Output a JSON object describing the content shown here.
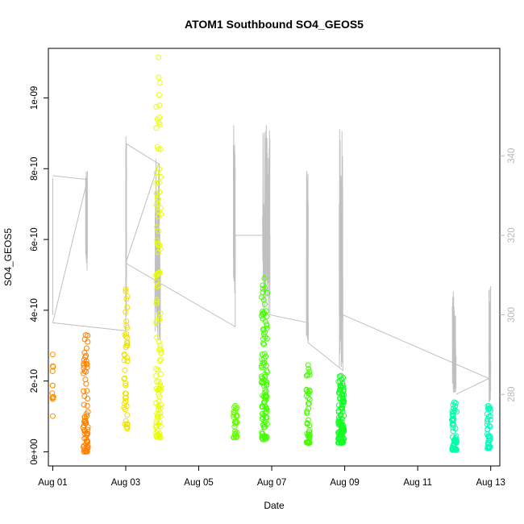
{
  "chart_data": {
    "type": "scatter",
    "title": "ATOM1 Southbound SO4_GEOS5",
    "xlabel": "Date",
    "ylabel": "SO4_GEOS5",
    "xlim": [
      -0.12,
      12.25
    ],
    "ylim": [
      -4e-11,
      1.14e-09
    ],
    "x_ticks": [
      0,
      2,
      4,
      6,
      8,
      10,
      12
    ],
    "x_tick_labels": [
      "Aug 01",
      "Aug 03",
      "Aug 05",
      "Aug 07",
      "Aug 09",
      "Aug 11",
      "Aug 13"
    ],
    "y_ticks": [
      0,
      2e-10,
      4e-10,
      6e-10,
      8e-10,
      1e-09
    ],
    "y_tick_labels": [
      "0e+00",
      "2e-10",
      "4e-10",
      "6e-10",
      "8e-10",
      "1e-09"
    ],
    "y2_label": "",
    "y2_lim": [
      262,
      367
    ],
    "y2_ticks": [
      280,
      300,
      320,
      340
    ],
    "y2_tick_labels": [
      "280",
      "300",
      "320",
      "340"
    ],
    "series_color_note": "",
    "colors": {
      "line": "#c0c0c0",
      "clusters": [
        "#ff9900",
        "#ff8800",
        "#e3f000",
        "#f6ff00",
        "#66ff00",
        "#33ff00",
        "#55ff00",
        "#11ff22",
        "#00ffaa",
        "#00ffb8"
      ]
    },
    "clusters": [
      {
        "x": 0.0,
        "xspread": 0.02,
        "ymin": 1e-10,
        "ymax": 2.75e-10,
        "n": 12,
        "color": "#ff9000"
      },
      {
        "x": 0.9,
        "xspread": 0.07,
        "ymin": 0.0,
        "ymax": 3.3e-10,
        "n": 70,
        "color": "#ff8000"
      },
      {
        "x": 2.0,
        "xspread": 0.05,
        "ymin": 6.5e-11,
        "ymax": 4.6e-10,
        "n": 45,
        "color": "#f0e000"
      },
      {
        "x": 2.9,
        "xspread": 0.07,
        "ymin": 4e-11,
        "ymax": 1.115e-09,
        "n": 110,
        "color": "#e8ff00"
      },
      {
        "x": 5.0,
        "xspread": 0.05,
        "ymin": 4e-11,
        "ymax": 1.3e-10,
        "n": 30,
        "color": "#66ff00"
      },
      {
        "x": 5.8,
        "xspread": 0.08,
        "ymin": 3.5e-11,
        "ymax": 4.9e-10,
        "n": 110,
        "color": "#44ff00"
      },
      {
        "x": 7.0,
        "xspread": 0.05,
        "ymin": 2.5e-11,
        "ymax": 2.45e-10,
        "n": 45,
        "color": "#44ff00"
      },
      {
        "x": 7.9,
        "xspread": 0.08,
        "ymin": 2.5e-11,
        "ymax": 2.15e-10,
        "n": 110,
        "color": "#11ff22"
      },
      {
        "x": 11.0,
        "xspread": 0.07,
        "ymin": 5e-12,
        "ymax": 1.4e-10,
        "n": 60,
        "color": "#00ffaa"
      },
      {
        "x": 11.95,
        "xspread": 0.05,
        "ymin": 1e-11,
        "ymax": 1.3e-10,
        "n": 40,
        "color": "#00ffbb"
      }
    ],
    "line_segments": [
      {
        "x0": 0.0,
        "x1": 0.0,
        "y2min": 298,
        "y2max": 335
      },
      {
        "x0": 0.9,
        "x1": 0.95,
        "y2min": 311,
        "y2max": 337
      },
      {
        "x0": 2.0,
        "x1": 2.02,
        "y2min": 296,
        "y2max": 345
      },
      {
        "x0": 2.8,
        "x1": 2.95,
        "y2min": 292,
        "y2max": 342
      },
      {
        "x0": 4.95,
        "x1": 5.0,
        "y2min": 305,
        "y2max": 350
      },
      {
        "x0": 5.75,
        "x1": 5.95,
        "y2min": 300,
        "y2max": 348
      },
      {
        "x0": 6.95,
        "x1": 7.0,
        "y2min": 293,
        "y2max": 342
      },
      {
        "x0": 7.85,
        "x1": 7.95,
        "y2min": 286,
        "y2max": 347
      },
      {
        "x0": 10.95,
        "x1": 11.05,
        "y2min": 280,
        "y2max": 306
      },
      {
        "x0": 11.95,
        "x1": 12.0,
        "y2min": 278,
        "y2max": 308
      }
    ],
    "line_path": [
      [
        0.0,
        335
      ],
      [
        0.95,
        334
      ],
      [
        0.0,
        298
      ],
      [
        2.0,
        296
      ],
      [
        2.02,
        343
      ],
      [
        2.9,
        338
      ],
      [
        2.0,
        313
      ],
      [
        5.0,
        297
      ],
      [
        5.0,
        320
      ],
      [
        5.95,
        320
      ],
      [
        5.95,
        300
      ],
      [
        7.0,
        298
      ],
      [
        7.0,
        293
      ],
      [
        7.95,
        286
      ],
      [
        7.95,
        300
      ],
      [
        11.95,
        284
      ],
      [
        11.05,
        280
      ],
      [
        11.95,
        284
      ],
      [
        12.0,
        284
      ]
    ]
  }
}
